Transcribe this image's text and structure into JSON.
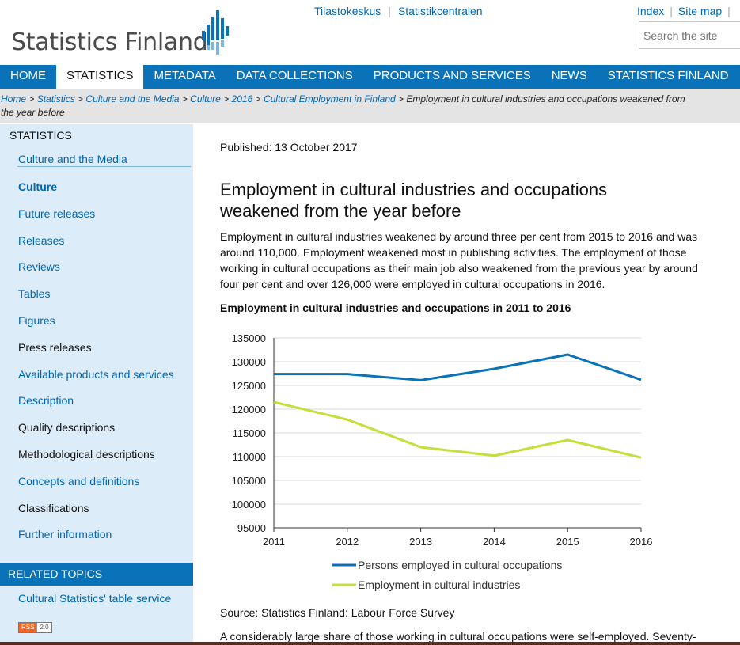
{
  "header": {
    "logo_text": "Statistics Finland",
    "top_links": [
      "Tilastokeskus",
      "Statistikcentralen"
    ],
    "util_links": [
      "Index",
      "Site map"
    ],
    "search_placeholder": "Search the site"
  },
  "nav": {
    "items": [
      "HOME",
      "STATISTICS",
      "METADATA",
      "DATA COLLECTIONS",
      "PRODUCTS AND SERVICES",
      "NEWS",
      "STATISTICS FINLAND"
    ],
    "active": "STATISTICS"
  },
  "breadcrumb": {
    "links": [
      "Home",
      "Statistics",
      "Culture and the Media",
      "Culture",
      "2016",
      "Cultural Employment in Finland"
    ],
    "current_line1": "Employment in cultural industries and occupations weakened from",
    "current_line2": "the year before"
  },
  "sidebar": {
    "heading": "STATISTICS",
    "items": [
      {
        "label": "Culture and the Media",
        "style": "link"
      },
      {
        "label": "Culture",
        "style": "bold"
      },
      {
        "label": "Future releases",
        "style": "link"
      },
      {
        "label": "Releases",
        "style": "link"
      },
      {
        "label": "Reviews",
        "style": "link"
      },
      {
        "label": "Tables",
        "style": "link"
      },
      {
        "label": "Figures",
        "style": "link"
      },
      {
        "label": "Press releases",
        "style": "dark"
      },
      {
        "label": "Available products and services",
        "style": "link"
      },
      {
        "label": "Description",
        "style": "link"
      },
      {
        "label": "Quality descriptions",
        "style": "dark"
      },
      {
        "label": "Methodological descriptions",
        "style": "dark"
      },
      {
        "label": "Concepts and definitions",
        "style": "link"
      },
      {
        "label": "Classifications",
        "style": "dark"
      },
      {
        "label": "Further information",
        "style": "link"
      }
    ],
    "related_heading": "RELATED TOPICS",
    "related_items": [
      "Cultural Statistics' table service"
    ],
    "rss_left": "RSS",
    "rss_right": "2.0"
  },
  "content": {
    "published": "Published: 13 October 2017",
    "title_line1": "Employment in cultural industries and occupations",
    "title_line2": "weakened from the year before",
    "lead": "Employment in cultural industries weakened by around three per cent from 2015 to 2016 and was around 110,000. Employment weakened most in publishing activities. The employment of those working in cultural occupations as their main job also weakened from the previous year by around four per cent and over 126,000 were employed in cultural occupations in 2016.",
    "chart_title": "Employment in cultural industries and occupations in 2011 to 2016",
    "source": "Source: Statistics Finland: Labour Force Survey",
    "more_text": "A considerably large share of those working in cultural occupations were self-employed. Seventy-"
  },
  "colors": {
    "nav_blue": "#0a72b9",
    "link_blue": "#0066b3",
    "sidebar_bg": "#dcecf9",
    "series_occupations": "#0a72b9",
    "series_industries": "#c3e03a"
  },
  "chart_data": {
    "type": "line",
    "x": [
      2011,
      2012,
      2013,
      2014,
      2015,
      2016
    ],
    "series": [
      {
        "name": "Persons employed in cultural occupations",
        "values": [
          127400,
          127400,
          126100,
          128500,
          131500,
          126200
        ]
      },
      {
        "name": "Employment in cultural industries",
        "values": [
          121500,
          117800,
          112000,
          110200,
          113500,
          109800
        ]
      }
    ],
    "title": "Employment in cultural industries and occupations in 2011 to 2016",
    "xlabel": "",
    "ylabel": "",
    "ylim": [
      95000,
      135000
    ],
    "yticks": [
      95000,
      100000,
      105000,
      110000,
      115000,
      120000,
      125000,
      130000,
      135000
    ],
    "grid": true,
    "legend": "bottom"
  }
}
